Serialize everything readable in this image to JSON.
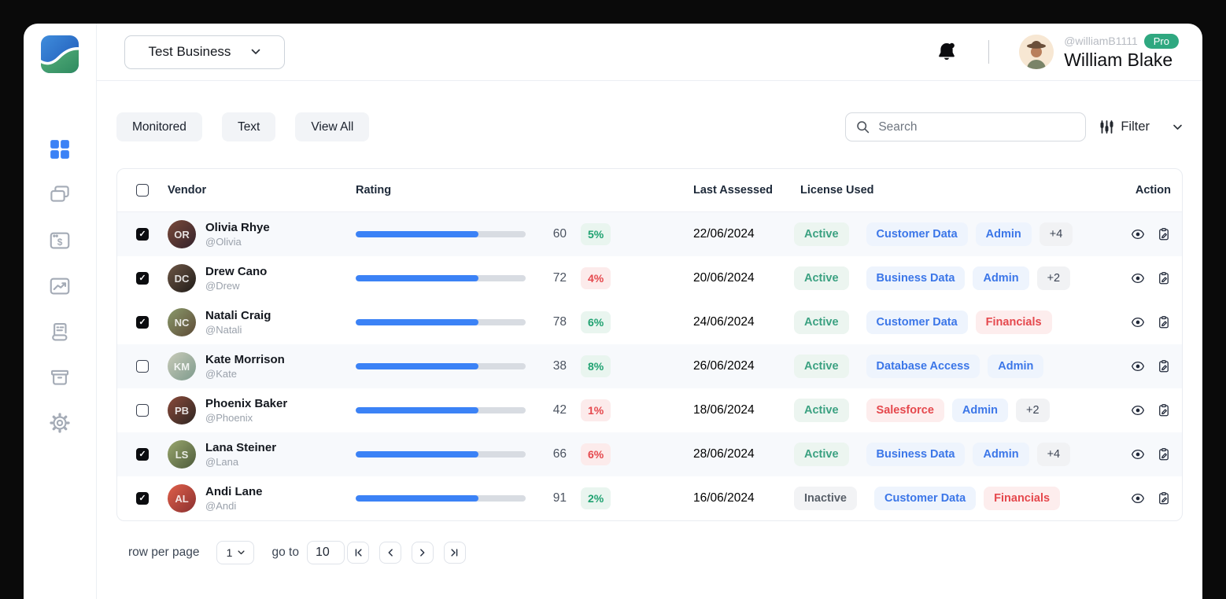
{
  "topbar": {
    "business_selector": "Test Business",
    "user": {
      "handle": "@williamB1111",
      "badge": "Pro",
      "name": "William Blake"
    }
  },
  "sidebar": {
    "items": [
      {
        "icon": "dashboard-grid-icon",
        "active": true
      },
      {
        "icon": "cards-icon",
        "active": false
      },
      {
        "icon": "billing-window-icon",
        "active": false
      },
      {
        "icon": "analytics-window-icon",
        "active": false
      },
      {
        "icon": "receipt-icon",
        "active": false
      },
      {
        "icon": "archive-box-icon",
        "active": false
      },
      {
        "icon": "settings-gear-icon",
        "active": false
      }
    ]
  },
  "toolbar": {
    "tabs": [
      {
        "label": "Monitored"
      },
      {
        "label": "Text"
      },
      {
        "label": "View All"
      }
    ],
    "search_placeholder": "Search",
    "filter_label": "Filter"
  },
  "colors": {
    "accent_blue": "#3b82f6",
    "badge_green": "#20a271",
    "badge_red": "#e5484d",
    "pro_green": "#2fa880"
  },
  "table": {
    "columns": [
      "Vendor",
      "Rating",
      "Last Assessed",
      "License Used",
      "Action"
    ],
    "rows": [
      {
        "checked": true,
        "row_class": "highlight",
        "avatar": {
          "initials": "OR",
          "c1": "#7a4a3a",
          "c2": "#33222b"
        },
        "name": "Olivia Rhye",
        "handle": "@Olivia",
        "rating": 60,
        "bar_pct": 72,
        "pct": "5%",
        "pct_class": "green",
        "date": "22/06/2024",
        "status": "Active",
        "status_class": "active",
        "licenses": [
          {
            "label": "Customer Data",
            "type": "blue"
          },
          {
            "label": "Admin",
            "type": "blue"
          },
          {
            "label": "+4",
            "type": "plus"
          }
        ]
      },
      {
        "checked": true,
        "row_class": "",
        "avatar": {
          "initials": "DC",
          "c1": "#6e5746",
          "c2": "#1f1b18"
        },
        "name": "Drew Cano",
        "handle": "@Drew",
        "rating": 72,
        "bar_pct": 72,
        "pct": "4%",
        "pct_class": "red",
        "date": "20/06/2024",
        "status": "Active",
        "status_class": "active",
        "licenses": [
          {
            "label": "Business Data",
            "type": "blue"
          },
          {
            "label": "Admin",
            "type": "blue"
          },
          {
            "label": "+2",
            "type": "plus"
          }
        ]
      },
      {
        "checked": true,
        "row_class": "",
        "avatar": {
          "initials": "NC",
          "c1": "#8a9a6b",
          "c2": "#5d4a36"
        },
        "name": "Natali Craig",
        "handle": "@Natali",
        "rating": 78,
        "bar_pct": 72,
        "pct": "6%",
        "pct_class": "green",
        "date": "24/06/2024",
        "status": "Active",
        "status_class": "active",
        "licenses": [
          {
            "label": "Customer Data",
            "type": "blue"
          },
          {
            "label": "Financials",
            "type": "red"
          }
        ]
      },
      {
        "checked": false,
        "row_class": "highlight",
        "avatar": {
          "initials": "KM",
          "c1": "#c9cbb9",
          "c2": "#7d9a8c"
        },
        "name": "Kate Morrison",
        "handle": "@Kate",
        "rating": 38,
        "bar_pct": 72,
        "pct": "8%",
        "pct_class": "green",
        "date": "26/06/2024",
        "status": "Active",
        "status_class": "active",
        "licenses": [
          {
            "label": "Database Access",
            "type": "blue"
          },
          {
            "label": "Admin",
            "type": "blue"
          }
        ]
      },
      {
        "checked": false,
        "row_class": "",
        "avatar": {
          "initials": "PB",
          "c1": "#8a4a3a",
          "c2": "#2e2622"
        },
        "name": "Phoenix Baker",
        "handle": "@Phoenix",
        "rating": 42,
        "bar_pct": 72,
        "pct": "1%",
        "pct_class": "red",
        "date": "18/06/2024",
        "status": "Active",
        "status_class": "active",
        "licenses": [
          {
            "label": "Salesforce",
            "type": "red"
          },
          {
            "label": "Admin",
            "type": "blue"
          },
          {
            "label": "+2",
            "type": "plus"
          }
        ]
      },
      {
        "checked": true,
        "row_class": "highlight",
        "avatar": {
          "initials": "LS",
          "c1": "#9aa86f",
          "c2": "#4c5a3a"
        },
        "name": "Lana Steiner",
        "handle": "@Lana",
        "rating": 66,
        "bar_pct": 72,
        "pct": "6%",
        "pct_class": "red",
        "date": "28/06/2024",
        "status": "Active",
        "status_class": "active",
        "licenses": [
          {
            "label": "Business Data",
            "type": "blue"
          },
          {
            "label": "Admin",
            "type": "blue"
          },
          {
            "label": "+4",
            "type": "plus"
          }
        ]
      },
      {
        "checked": true,
        "row_class": "",
        "avatar": {
          "initials": "AL",
          "c1": "#e0604a",
          "c2": "#8a3030"
        },
        "name": "Andi Lane",
        "handle": "@Andi",
        "rating": 91,
        "bar_pct": 72,
        "pct": "2%",
        "pct_class": "green",
        "date": "16/06/2024",
        "status": "Inactive",
        "status_class": "inactive",
        "licenses": [
          {
            "label": "Customer Data",
            "type": "blue"
          },
          {
            "label": "Financials",
            "type": "red"
          }
        ]
      }
    ]
  },
  "pagination": {
    "rows_label": "row per page",
    "select_value": "1",
    "goto_label": "go to",
    "goto_value": "10"
  }
}
